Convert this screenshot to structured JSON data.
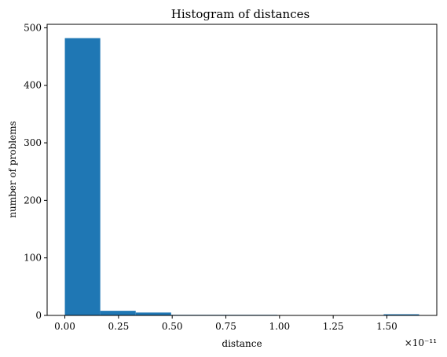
{
  "chart_data": {
    "type": "bar",
    "title": "Histogram of distances",
    "xlabel": "distance",
    "ylabel": "number of problems",
    "x_scale_label": "×10⁻¹¹",
    "xlim": [
      -0.0825,
      1.7325
    ],
    "ylim": [
      0,
      506
    ],
    "xticks": [
      0.0,
      0.25,
      0.5,
      0.75,
      1.0,
      1.25,
      1.5
    ],
    "xtick_labels": [
      "0.00",
      "0.25",
      "0.50",
      "0.75",
      "1.00",
      "1.25",
      "1.50"
    ],
    "yticks": [
      0,
      100,
      200,
      300,
      400,
      500
    ],
    "ytick_labels": [
      "0",
      "100",
      "200",
      "300",
      "400",
      "500"
    ],
    "bar_color": "#1f77b4",
    "bins": [
      {
        "x0": 0.0,
        "x1": 0.165,
        "count": 482
      },
      {
        "x0": 0.165,
        "x1": 0.33,
        "count": 8
      },
      {
        "x0": 0.33,
        "x1": 0.495,
        "count": 5
      },
      {
        "x0": 0.495,
        "x1": 0.66,
        "count": 1
      },
      {
        "x0": 0.66,
        "x1": 0.825,
        "count": 1
      },
      {
        "x0": 0.825,
        "x1": 0.99,
        "count": 1
      },
      {
        "x0": 0.99,
        "x1": 1.155,
        "count": 0
      },
      {
        "x0": 1.155,
        "x1": 1.32,
        "count": 0
      },
      {
        "x0": 1.32,
        "x1": 1.485,
        "count": 0
      },
      {
        "x0": 1.485,
        "x1": 1.65,
        "count": 2
      }
    ],
    "grid": false,
    "legend": "none"
  }
}
